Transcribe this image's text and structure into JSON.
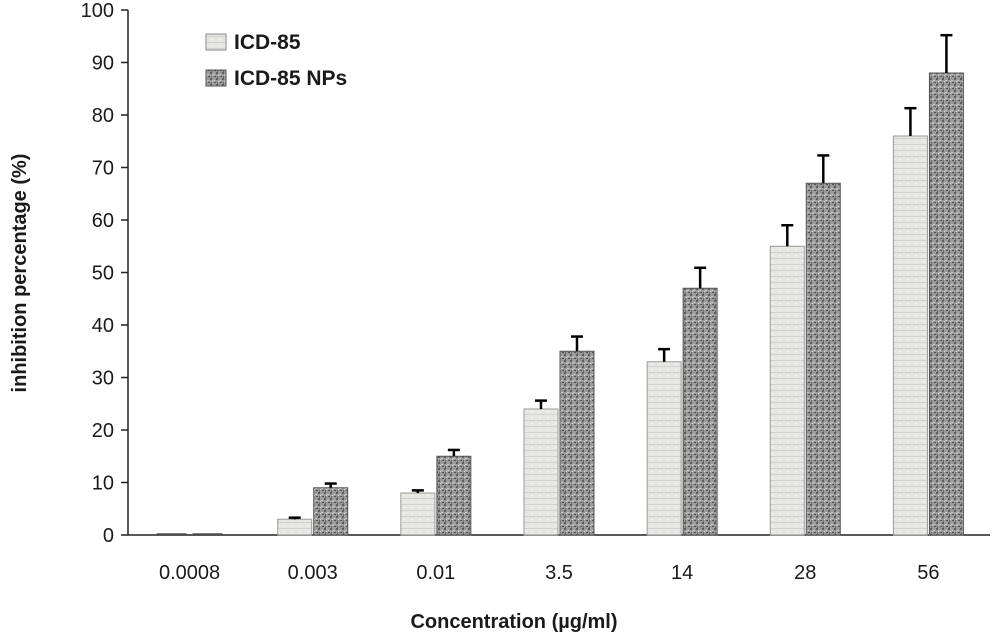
{
  "chart_data": {
    "type": "bar",
    "title": "",
    "xlabel": "Concentration (µg/ml)",
    "ylabel": "inhibition percentage (%)",
    "categories": [
      "0.0008",
      "0.003",
      "0.01",
      "3.5",
      "14",
      "28",
      "56"
    ],
    "ylim": [
      0,
      100
    ],
    "yticks": [
      0,
      10,
      20,
      30,
      40,
      50,
      60,
      70,
      80,
      90,
      100
    ],
    "grid": false,
    "legend_position": "top-left",
    "series": [
      {
        "name": "ICD-85",
        "values": [
          0,
          3,
          8,
          24,
          33,
          55,
          76
        ],
        "errors": [
          0,
          0.3,
          0.5,
          1.6,
          2.4,
          4.0,
          5.3
        ],
        "color": "#e4e4e0",
        "texture": "light-stripe"
      },
      {
        "name": "ICD-85 NPs",
        "values": [
          0,
          9,
          15,
          35,
          47,
          67,
          88
        ],
        "errors": [
          0,
          0.8,
          1.2,
          2.8,
          3.9,
          5.3,
          7.2
        ],
        "color": "#8e8e8e",
        "texture": "dark-speckle"
      }
    ]
  }
}
